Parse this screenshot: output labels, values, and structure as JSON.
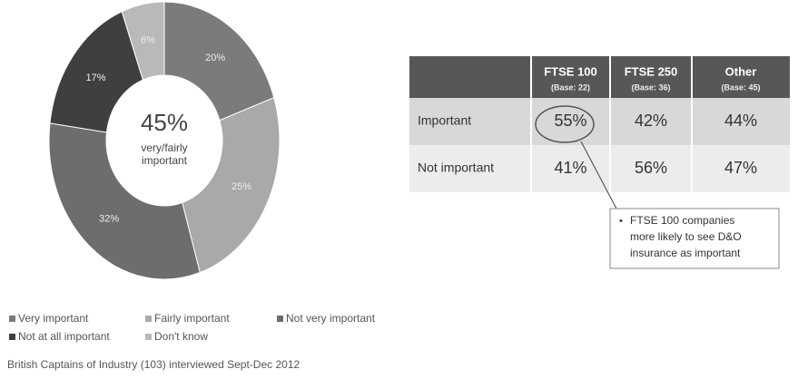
{
  "chart_data": {
    "type": "pie",
    "donut": true,
    "categories": [
      "Very important",
      "Fairly important",
      "Not very important",
      "Not at all important",
      "Don't know"
    ],
    "values": [
      20,
      25,
      32,
      17,
      6
    ],
    "value_labels": [
      "20%",
      "25%",
      "32%",
      "17%",
      "6%"
    ],
    "colors": [
      "#7b7b7b",
      "#a9a9a9",
      "#6d6d6d",
      "#3f3f3f",
      "#b9b9b9"
    ],
    "center_label": "45%",
    "center_note": [
      "very/fairly",
      "important"
    ]
  },
  "table": {
    "header": [
      "",
      "FTSE 100",
      "FTSE 250",
      "Other"
    ],
    "bases": [
      "",
      "(Base: 22)",
      "(Base: 36)",
      "(Base: 45)"
    ],
    "rows": [
      [
        "Important",
        "55%",
        "42%",
        "44%"
      ],
      [
        "Not important",
        "41%",
        "56%",
        "47%"
      ]
    ]
  },
  "callout": [
    "FTSE 100 companies",
    "more likely to see D&O",
    "insurance as important"
  ],
  "footnote": "British Captains of Industry (103) interviewed Sept-Dec 2012"
}
